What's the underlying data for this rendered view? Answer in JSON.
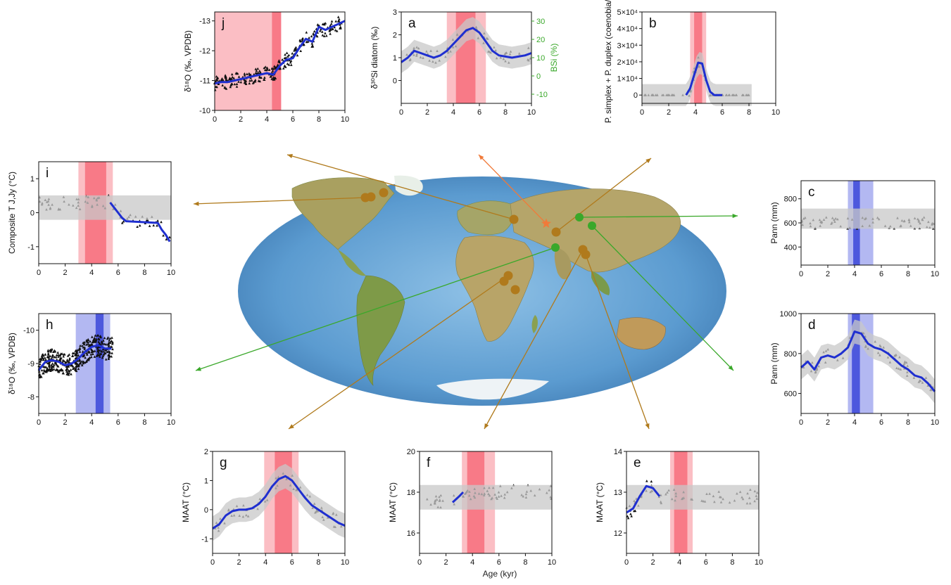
{
  "figure": {
    "xlabel": "Age (kyr)",
    "colors": {
      "red_band": "#f76f7c",
      "red_band_light": "#f9a8b0",
      "blue_band": "#3b46d9",
      "blue_band_light": "#9aa0ee",
      "fit_blue": "#1f2fd0",
      "uncertainty_gray": "#c8c8c8",
      "brown": "#b07a1c",
      "green": "#3aa82a",
      "orange": "#f07a3a",
      "ocean": "#5b9bd0"
    }
  },
  "map": {
    "type": "world-map",
    "legend_markers": [
      "brown circle sites",
      "green circle sites",
      "orange star study site"
    ]
  },
  "chart_data": [
    {
      "id": "j",
      "type": "scatter",
      "panel_label": "j",
      "ylabel": "δ¹⁸O (‰, VPDB)",
      "ylim": [
        -13.3,
        -10
      ],
      "y_inverted": true,
      "yticks": [
        "-10",
        "-11",
        "-12",
        "-13"
      ],
      "xlim": [
        0,
        10
      ],
      "xticks": [
        "0",
        "2",
        "4",
        "6",
        "8",
        "10"
      ],
      "bands": [
        {
          "from": 0,
          "to": 5.1,
          "shade": "light-red"
        },
        {
          "from": 4.4,
          "to": 5.1,
          "shade": "red"
        }
      ],
      "fit": {
        "x": [
          0,
          0.5,
          1,
          1.5,
          2,
          2.5,
          3,
          3.5,
          4,
          4.5,
          5,
          5.5,
          6,
          6.5,
          7,
          7.5,
          8,
          8.5,
          9,
          9.5,
          10
        ],
        "y": [
          -10.9,
          -10.95,
          -10.95,
          -11.0,
          -11.05,
          -11.1,
          -11.15,
          -11.2,
          -11.25,
          -11.2,
          -11.5,
          -11.7,
          -11.75,
          -12.1,
          -12.4,
          -12.3,
          -12.8,
          -12.7,
          -12.8,
          -12.9,
          -13.0
        ]
      }
    },
    {
      "id": "a",
      "type": "scatter",
      "panel_label": "a",
      "ylabel": "δ³⁰Si diatom (‰)",
      "y2label": "BSi (%)",
      "ylim": [
        -1,
        3
      ],
      "yticks": [
        "0",
        "1",
        "2",
        "3"
      ],
      "y2lim": [
        -15,
        35
      ],
      "y2ticks": [
        "-10",
        "0",
        "10",
        "20",
        "30"
      ],
      "xlim": [
        0,
        10
      ],
      "xticks": [
        "0",
        "2",
        "4",
        "6",
        "8",
        "10"
      ],
      "bands": [
        {
          "from": 3.5,
          "to": 6.5,
          "shade": "light-red"
        },
        {
          "from": 4.2,
          "to": 5.7,
          "shade": "red"
        }
      ],
      "fit": {
        "x": [
          0,
          0.5,
          1,
          1.5,
          2,
          2.5,
          3,
          3.5,
          4,
          4.5,
          5,
          5.5,
          6,
          6.5,
          7,
          7.5,
          8,
          8.5,
          9,
          9.5,
          10
        ],
        "y": [
          0.8,
          1.0,
          1.3,
          1.2,
          1.1,
          1.0,
          1.1,
          1.3,
          1.6,
          1.9,
          2.2,
          2.3,
          2.1,
          1.7,
          1.3,
          1.1,
          1.05,
          1.0,
          1.05,
          1.1,
          1.2
        ]
      }
    },
    {
      "id": "b",
      "type": "scatter",
      "panel_label": "b",
      "ylabel": "P. simplex + P. duplex (coenobia/g)",
      "ylim": [
        -5000,
        50000
      ],
      "yticks": [
        "0",
        "1×10⁴",
        "2×10⁴",
        "3×10⁴",
        "4×10⁴",
        "5×10⁴"
      ],
      "xlim": [
        0,
        10
      ],
      "xticks": [
        "0",
        "2",
        "4",
        "6",
        "8",
        "10"
      ],
      "bands": [
        {
          "from": 3.6,
          "to": 4.8,
          "shade": "light-red"
        },
        {
          "from": 3.9,
          "to": 4.5,
          "shade": "red"
        }
      ],
      "fit": {
        "x": [
          3.3,
          3.6,
          3.9,
          4.2,
          4.5,
          4.8,
          5.1,
          5.4,
          5.7,
          6.0
        ],
        "y": [
          0,
          4000,
          12000,
          19500,
          19000,
          9000,
          2000,
          0,
          0,
          0
        ]
      }
    },
    {
      "id": "c",
      "type": "scatter",
      "panel_label": "c",
      "ylabel": "Pann (mm)",
      "ylim": [
        250,
        950
      ],
      "yticks": [
        "400",
        "600",
        "800"
      ],
      "xlim": [
        0,
        10
      ],
      "xticks": [
        "0",
        "2",
        "4",
        "6",
        "8",
        "10"
      ],
      "bands": [
        {
          "from": 3.5,
          "to": 5.4,
          "shade": "light-blue"
        },
        {
          "from": 3.9,
          "to": 4.4,
          "shade": "blue"
        }
      ]
    },
    {
      "id": "d",
      "type": "scatter",
      "panel_label": "d",
      "ylabel": "Pann (mm)",
      "ylim": [
        500,
        1000
      ],
      "yticks": [
        "600",
        "800",
        "1000"
      ],
      "xlim": [
        0,
        10
      ],
      "xticks": [
        "0",
        "2",
        "4",
        "6",
        "8",
        "10"
      ],
      "bands": [
        {
          "from": 3.5,
          "to": 5.4,
          "shade": "light-blue"
        },
        {
          "from": 3.8,
          "to": 4.4,
          "shade": "blue"
        }
      ],
      "fit": {
        "x": [
          0,
          0.5,
          1,
          1.5,
          2,
          2.5,
          3,
          3.5,
          4,
          4.5,
          5,
          5.5,
          6,
          6.5,
          7,
          7.5,
          8,
          8.5,
          9,
          9.5,
          10
        ],
        "y": [
          730,
          760,
          720,
          780,
          790,
          780,
          800,
          830,
          910,
          900,
          850,
          830,
          820,
          800,
          770,
          740,
          720,
          690,
          680,
          650,
          610
        ]
      }
    },
    {
      "id": "e",
      "type": "scatter",
      "panel_label": "e",
      "ylabel": "MAAT (°C)",
      "ylim": [
        11.5,
        14
      ],
      "yticks": [
        "12",
        "13",
        "14"
      ],
      "xlim": [
        0,
        10
      ],
      "xticks": [
        "0",
        "2",
        "4",
        "6",
        "8",
        "10"
      ],
      "bands": [
        {
          "from": 3.3,
          "to": 5.0,
          "shade": "light-red"
        },
        {
          "from": 3.6,
          "to": 4.6,
          "shade": "red"
        }
      ],
      "fit": {
        "x": [
          0,
          0.5,
          1,
          1.5,
          2,
          2.5
        ],
        "y": [
          12.5,
          12.6,
          12.9,
          13.15,
          13.1,
          12.9
        ]
      }
    },
    {
      "id": "f",
      "type": "scatter",
      "panel_label": "f",
      "ylabel": "MAAT (°C)",
      "ylim": [
        15,
        20
      ],
      "yticks": [
        "16",
        "18",
        "20"
      ],
      "xlim": [
        0,
        10
      ],
      "xticks": [
        "0",
        "2",
        "4",
        "6",
        "8",
        "10"
      ],
      "bands": [
        {
          "from": 3.2,
          "to": 5.7,
          "shade": "light-red"
        },
        {
          "from": 3.6,
          "to": 4.9,
          "shade": "red"
        }
      ],
      "fit": {
        "x": [
          2.5,
          3.0,
          3.3
        ],
        "y": [
          17.5,
          17.8,
          18.0
        ]
      }
    },
    {
      "id": "g",
      "type": "scatter",
      "panel_label": "g",
      "ylabel": "MAAT (°C)",
      "ylim": [
        -1.5,
        2
      ],
      "yticks": [
        "-1",
        "0",
        "1",
        "2"
      ],
      "xlim": [
        0,
        10
      ],
      "xticks": [
        "0",
        "2",
        "4",
        "6",
        "8",
        "10"
      ],
      "bands": [
        {
          "from": 3.9,
          "to": 6.5,
          "shade": "light-red"
        },
        {
          "from": 4.7,
          "to": 6.0,
          "shade": "red"
        }
      ],
      "fit": {
        "x": [
          0,
          0.5,
          1,
          1.5,
          2,
          2.5,
          3,
          3.5,
          4,
          4.5,
          5,
          5.5,
          6,
          6.5,
          7,
          7.5,
          8,
          8.5,
          9,
          9.5,
          10
        ],
        "y": [
          -0.65,
          -0.5,
          -0.2,
          -0.05,
          0.0,
          0.0,
          0.05,
          0.2,
          0.45,
          0.8,
          1.05,
          1.15,
          1.0,
          0.7,
          0.4,
          0.15,
          0.0,
          -0.15,
          -0.3,
          -0.45,
          -0.55
        ]
      }
    },
    {
      "id": "h",
      "type": "scatter",
      "panel_label": "h",
      "ylabel": "δ¹⁸O (‰, VPDB)",
      "ylim": [
        -7.5,
        -10.5
      ],
      "y_inverted": true,
      "yticks": [
        "-10",
        "-9",
        "-8"
      ],
      "xlim": [
        0,
        10
      ],
      "xticks": [
        "0",
        "2",
        "4",
        "6",
        "8",
        "10"
      ],
      "bands": [
        {
          "from": 2.8,
          "to": 5.4,
          "shade": "light-blue"
        },
        {
          "from": 4.3,
          "to": 4.9,
          "shade": "blue"
        }
      ],
      "fit": {
        "x": [
          0,
          0.5,
          1,
          1.5,
          2,
          2.5,
          3,
          3.5,
          4,
          4.5,
          5,
          5.5
        ],
        "y": [
          -8.8,
          -9.05,
          -9.1,
          -9.05,
          -8.95,
          -9.0,
          -9.15,
          -9.35,
          -9.5,
          -9.55,
          -9.45,
          -9.45
        ]
      }
    },
    {
      "id": "i",
      "type": "scatter",
      "panel_label": "i",
      "ylabel": "Composite T J,Jy (°C)",
      "ylim": [
        -1.5,
        1.5
      ],
      "yticks": [
        "-1",
        "0",
        "1"
      ],
      "xlim": [
        0,
        10
      ],
      "xticks": [
        "0",
        "2",
        "4",
        "6",
        "8",
        "10"
      ],
      "bands": [
        {
          "from": 3.0,
          "to": 5.6,
          "shade": "light-red"
        },
        {
          "from": 3.5,
          "to": 5.1,
          "shade": "red"
        }
      ],
      "fit": {
        "x": [
          5.4,
          5.7,
          6.0,
          6.3,
          6.6,
          9.0,
          9.3,
          9.6,
          9.9
        ],
        "y": [
          0.3,
          0.15,
          0.0,
          -0.15,
          -0.25,
          -0.3,
          -0.5,
          -0.65,
          -0.85
        ]
      }
    }
  ]
}
